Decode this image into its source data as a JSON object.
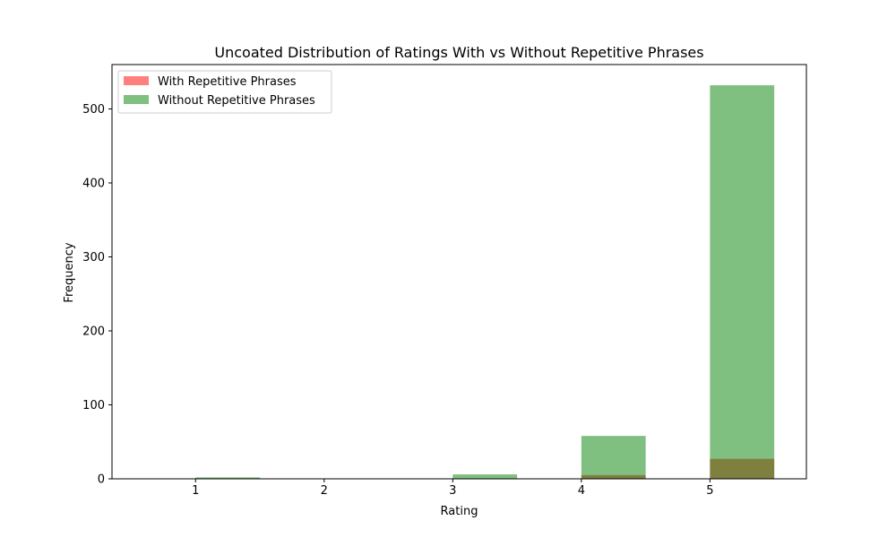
{
  "chart_data": {
    "type": "bar",
    "title": "Uncoated Distribution of Ratings With vs Without Repetitive Phrases",
    "xlabel": "Rating",
    "ylabel": "Frequency",
    "xlim": [
      0.35,
      5.75
    ],
    "ylim": [
      0,
      560
    ],
    "xticks": [
      1,
      2,
      3,
      4,
      5
    ],
    "yticks": [
      0,
      100,
      200,
      300,
      400,
      500
    ],
    "grid": false,
    "legend_position": "upper-left",
    "bin_width": 0.5,
    "series": [
      {
        "name": "With Repetitive Phrases",
        "color": "#ff0000",
        "opacity": 0.5,
        "bins": [
          {
            "x_start": 1.0,
            "x_end": 1.5,
            "value": 0
          },
          {
            "x_start": 3.0,
            "x_end": 3.5,
            "value": 0
          },
          {
            "x_start": 4.0,
            "x_end": 4.5,
            "value": 5
          },
          {
            "x_start": 5.0,
            "x_end": 5.5,
            "value": 27
          }
        ]
      },
      {
        "name": "Without Repetitive Phrases",
        "color": "#008000",
        "opacity": 0.5,
        "bins": [
          {
            "x_start": 1.0,
            "x_end": 1.5,
            "value": 2
          },
          {
            "x_start": 3.0,
            "x_end": 3.5,
            "value": 6
          },
          {
            "x_start": 4.0,
            "x_end": 4.5,
            "value": 58
          },
          {
            "x_start": 5.0,
            "x_end": 5.5,
            "value": 532
          }
        ]
      }
    ]
  }
}
